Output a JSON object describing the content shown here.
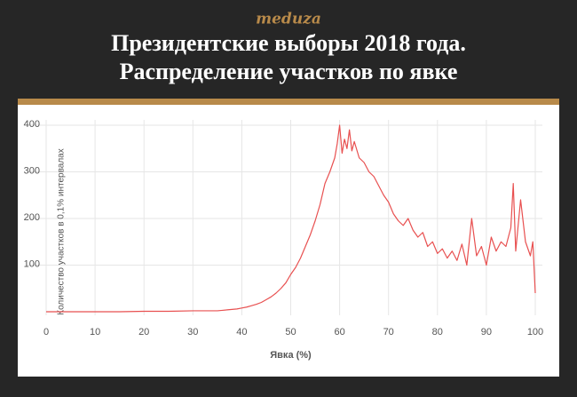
{
  "brand": "meduza",
  "chart_data": {
    "type": "line",
    "title": [
      "Президентские выборы 2018 года.",
      "Распределение участков по явке"
    ],
    "x_label": "Явка (%)",
    "y_label": "Количество участков в 0,1% интервалах",
    "xlim": [
      0,
      100
    ],
    "ylim": [
      0,
      400
    ],
    "xticks": [
      0,
      10,
      20,
      30,
      40,
      50,
      60,
      70,
      80,
      90,
      100
    ],
    "yticks": [
      100,
      200,
      300,
      400
    ],
    "grid": true,
    "series": [
      {
        "color": "#e85050",
        "x": [
          0,
          5,
          10,
          15,
          20,
          25,
          30,
          35,
          36,
          37,
          38,
          39,
          40,
          41,
          42,
          43,
          44,
          45,
          46,
          47,
          48,
          49,
          50,
          51,
          52,
          53,
          54,
          55,
          56,
          57,
          58,
          59,
          59.5,
          60,
          60.5,
          61,
          61.5,
          62,
          62.5,
          63,
          64,
          65,
          66,
          67,
          68,
          69,
          70,
          71,
          72,
          73,
          74,
          75,
          76,
          77,
          78,
          79,
          80,
          81,
          82,
          83,
          84,
          85,
          86,
          87,
          88,
          89,
          90,
          91,
          92,
          93,
          94,
          95,
          95.5,
          96,
          97,
          98,
          99,
          99.5,
          100
        ],
        "values": [
          0,
          0,
          0,
          0,
          1,
          1,
          2,
          2,
          3,
          4,
          5,
          6,
          8,
          10,
          13,
          16,
          20,
          26,
          32,
          40,
          50,
          62,
          80,
          95,
          115,
          140,
          165,
          195,
          230,
          275,
          300,
          330,
          360,
          400,
          340,
          370,
          350,
          390,
          345,
          365,
          330,
          320,
          300,
          290,
          270,
          250,
          235,
          210,
          195,
          185,
          200,
          175,
          160,
          170,
          140,
          150,
          125,
          135,
          115,
          130,
          110,
          145,
          100,
          200,
          120,
          140,
          100,
          160,
          130,
          150,
          140,
          180,
          275,
          130,
          240,
          150,
          120,
          150,
          40
        ]
      }
    ]
  }
}
